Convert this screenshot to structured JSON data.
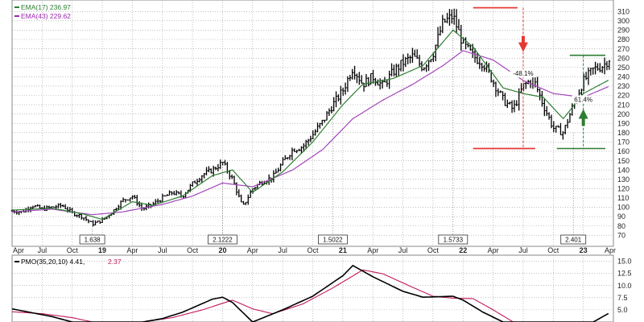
{
  "chart_data": [
    {
      "type": "candlestick",
      "x_start": "2018-04",
      "x_end": "2023-04",
      "x_tick_labels": [
        "Apr",
        "Jul",
        "Oct",
        "19",
        "Apr",
        "Jul",
        "Oct",
        "20",
        "Apr",
        "Jul",
        "Oct",
        "21",
        "Apr",
        "Jul",
        "Oct",
        "22",
        "Apr",
        "Jul",
        "Oct",
        "23",
        "Apr"
      ],
      "y_ticks": [
        70,
        80,
        90,
        100,
        110,
        120,
        130,
        140,
        150,
        160,
        170,
        180,
        190,
        200,
        210,
        220,
        230,
        240,
        250,
        260,
        270,
        280,
        290,
        300,
        310
      ],
      "ylim": [
        65,
        318
      ],
      "grid": true,
      "legend_position": "top-left",
      "legend": [
        {
          "label": "EMA(17) 236.97",
          "color": "#2e7d32"
        },
        {
          "label": "EMA(43) 229.62",
          "color": "#9c27b0"
        }
      ],
      "price_path": [
        {
          "x": "2018-04",
          "y": 96
        },
        {
          "x": "2018-05",
          "y": 95
        },
        {
          "x": "2018-06",
          "y": 102
        },
        {
          "x": "2018-07",
          "y": 98
        },
        {
          "x": "2018-08",
          "y": 100
        },
        {
          "x": "2018-09",
          "y": 102
        },
        {
          "x": "2018-10",
          "y": 94
        },
        {
          "x": "2018-11",
          "y": 90
        },
        {
          "x": "2018-12",
          "y": 82
        },
        {
          "x": "2019-01",
          "y": 86
        },
        {
          "x": "2019-02",
          "y": 95
        },
        {
          "x": "2019-03",
          "y": 107
        },
        {
          "x": "2019-04",
          "y": 112
        },
        {
          "x": "2019-05",
          "y": 98
        },
        {
          "x": "2019-06",
          "y": 103
        },
        {
          "x": "2019-07",
          "y": 110
        },
        {
          "x": "2019-08",
          "y": 116
        },
        {
          "x": "2019-09",
          "y": 112
        },
        {
          "x": "2019-10",
          "y": 125
        },
        {
          "x": "2019-11",
          "y": 135
        },
        {
          "x": "2019-12",
          "y": 140
        },
        {
          "x": "2020-01",
          "y": 148
        },
        {
          "x": "2020-02",
          "y": 130
        },
        {
          "x": "2020-03",
          "y": 100
        },
        {
          "x": "2020-04",
          "y": 120
        },
        {
          "x": "2020-05",
          "y": 128
        },
        {
          "x": "2020-06",
          "y": 132
        },
        {
          "x": "2020-07",
          "y": 148
        },
        {
          "x": "2020-08",
          "y": 162
        },
        {
          "x": "2020-09",
          "y": 165
        },
        {
          "x": "2020-10",
          "y": 178
        },
        {
          "x": "2020-11",
          "y": 192
        },
        {
          "x": "2020-12",
          "y": 210
        },
        {
          "x": "2021-01",
          "y": 225
        },
        {
          "x": "2021-02",
          "y": 250
        },
        {
          "x": "2021-03",
          "y": 232
        },
        {
          "x": "2021-04",
          "y": 240
        },
        {
          "x": "2021-05",
          "y": 230
        },
        {
          "x": "2021-06",
          "y": 245
        },
        {
          "x": "2021-07",
          "y": 255
        },
        {
          "x": "2021-08",
          "y": 262
        },
        {
          "x": "2021-09",
          "y": 250
        },
        {
          "x": "2021-10",
          "y": 265
        },
        {
          "x": "2021-11",
          "y": 298
        },
        {
          "x": "2021-12",
          "y": 305
        },
        {
          "x": "2022-01",
          "y": 275
        },
        {
          "x": "2022-02",
          "y": 262
        },
        {
          "x": "2022-03",
          "y": 255
        },
        {
          "x": "2022-04",
          "y": 235
        },
        {
          "x": "2022-05",
          "y": 215
        },
        {
          "x": "2022-06",
          "y": 205
        },
        {
          "x": "2022-07",
          "y": 230
        },
        {
          "x": "2022-08",
          "y": 238
        },
        {
          "x": "2022-09",
          "y": 210
        },
        {
          "x": "2022-10",
          "y": 185
        },
        {
          "x": "2022-11",
          "y": 180
        },
        {
          "x": "2022-12",
          "y": 210
        },
        {
          "x": "2023-01",
          "y": 235
        },
        {
          "x": "2023-02",
          "y": 248
        },
        {
          "x": "2023-03",
          "y": 252
        },
        {
          "x": "2023-03-20",
          "y": 260
        }
      ],
      "ema17_path": [
        {
          "x": "2018-04",
          "y": 97
        },
        {
          "x": "2018-08",
          "y": 99
        },
        {
          "x": "2018-11",
          "y": 93
        },
        {
          "x": "2019-01",
          "y": 87
        },
        {
          "x": "2019-04",
          "y": 106
        },
        {
          "x": "2019-06",
          "y": 102
        },
        {
          "x": "2019-09",
          "y": 112
        },
        {
          "x": "2019-12",
          "y": 134
        },
        {
          "x": "2020-02",
          "y": 140
        },
        {
          "x": "2020-04",
          "y": 116
        },
        {
          "x": "2020-07",
          "y": 138
        },
        {
          "x": "2020-10",
          "y": 170
        },
        {
          "x": "2021-01",
          "y": 210
        },
        {
          "x": "2021-03",
          "y": 232
        },
        {
          "x": "2021-06",
          "y": 238
        },
        {
          "x": "2021-09",
          "y": 252
        },
        {
          "x": "2021-12",
          "y": 290
        },
        {
          "x": "2022-02",
          "y": 272
        },
        {
          "x": "2022-05",
          "y": 228
        },
        {
          "x": "2022-07",
          "y": 222
        },
        {
          "x": "2022-09",
          "y": 218
        },
        {
          "x": "2022-11",
          "y": 195
        },
        {
          "x": "2023-01",
          "y": 222
        },
        {
          "x": "2023-03-20",
          "y": 237
        }
      ],
      "ema43_path": [
        {
          "x": "2018-04",
          "y": 95
        },
        {
          "x": "2018-08",
          "y": 98
        },
        {
          "x": "2018-12",
          "y": 92
        },
        {
          "x": "2019-03",
          "y": 95
        },
        {
          "x": "2019-07",
          "y": 103
        },
        {
          "x": "2019-10",
          "y": 112
        },
        {
          "x": "2020-01",
          "y": 126
        },
        {
          "x": "2020-04",
          "y": 122
        },
        {
          "x": "2020-08",
          "y": 140
        },
        {
          "x": "2020-11",
          "y": 162
        },
        {
          "x": "2021-02",
          "y": 195
        },
        {
          "x": "2021-05",
          "y": 215
        },
        {
          "x": "2021-08",
          "y": 232
        },
        {
          "x": "2021-11",
          "y": 252
        },
        {
          "x": "2022-01",
          "y": 268
        },
        {
          "x": "2022-04",
          "y": 258
        },
        {
          "x": "2022-07",
          "y": 236
        },
        {
          "x": "2022-10",
          "y": 222
        },
        {
          "x": "2023-01",
          "y": 218
        },
        {
          "x": "2023-03-20",
          "y": 230
        }
      ],
      "annotations": [
        {
          "type": "price_box",
          "x": "2018-12",
          "y": 80,
          "text": "1.638"
        },
        {
          "type": "price_box",
          "x": "2020-01",
          "y": 148,
          "text": "2.1222"
        },
        {
          "type": "price_box",
          "x": "2020-12",
          "y": 210,
          "text": "1.5022"
        },
        {
          "type": "price_box",
          "x": "2021-12",
          "y": 305,
          "text": "1.5733"
        },
        {
          "type": "price_box",
          "x": "2022-12",
          "y": 180,
          "text": "2.401"
        },
        {
          "type": "percent_label",
          "x": "2022-07",
          "y": 241,
          "text": "-48.1%"
        },
        {
          "type": "percent_label",
          "x": "2023-01",
          "y": 213,
          "text": "61.4%"
        }
      ],
      "guides": {
        "red_level_high": 314,
        "red_level_low": 163,
        "red_x_start": "2022-02",
        "red_x_end": "2022-09",
        "red_arrow_x": "2022-07",
        "green_level_high": 263,
        "green_level_low": 163,
        "green_x_start": "2022-11",
        "green_x_end": "2023-04",
        "green_arrow_x": "2023-01"
      }
    },
    {
      "type": "line",
      "title": "PMO(35,20,10) 4.41, 2.37",
      "title_parts": [
        "PMO(35,20,10) 4.41,",
        "2.37"
      ],
      "y_ticks": [
        5.0,
        7.5,
        10.0,
        12.5,
        15.0
      ],
      "y_tick_labels": [
        "5.0",
        "7.5",
        "10.0",
        "12.5",
        "15.0"
      ],
      "ylim": [
        2.5,
        15.4
      ],
      "series": [
        {
          "color": "#000000",
          "points": [
            {
              "x": "2018-04",
              "y": 5.2
            },
            {
              "x": "2018-06",
              "y": 4.4
            },
            {
              "x": "2018-08",
              "y": 3.6
            },
            {
              "x": "2018-10",
              "y": 2.5
            },
            {
              "x": "2019-02",
              "y": 2.5
            },
            {
              "x": "2019-05",
              "y": 2.5
            },
            {
              "x": "2019-07",
              "y": 3.2
            },
            {
              "x": "2019-09",
              "y": 4.5
            },
            {
              "x": "2019-12",
              "y": 7.2
            },
            {
              "x": "2020-01",
              "y": 7.6
            },
            {
              "x": "2020-02",
              "y": 6.5
            },
            {
              "x": "2020-04",
              "y": 2.5
            },
            {
              "x": "2020-07",
              "y": 5.0
            },
            {
              "x": "2020-10",
              "y": 7.8
            },
            {
              "x": "2021-01",
              "y": 12.0
            },
            {
              "x": "2021-02",
              "y": 14.1
            },
            {
              "x": "2021-04",
              "y": 11.8
            },
            {
              "x": "2021-07",
              "y": 8.8
            },
            {
              "x": "2021-09",
              "y": 7.6
            },
            {
              "x": "2021-12",
              "y": 7.8
            },
            {
              "x": "2022-01",
              "y": 7.0
            },
            {
              "x": "2022-03",
              "y": 4.5
            },
            {
              "x": "2022-05",
              "y": 2.5
            },
            {
              "x": "2023-02",
              "y": 2.5
            },
            {
              "x": "2023-03-20",
              "y": 4.41
            }
          ]
        },
        {
          "color": "#c2185b",
          "points": [
            {
              "x": "2018-04",
              "y": 4.6
            },
            {
              "x": "2018-07",
              "y": 4.2
            },
            {
              "x": "2018-10",
              "y": 3.4
            },
            {
              "x": "2018-12",
              "y": 2.5
            },
            {
              "x": "2019-05",
              "y": 2.5
            },
            {
              "x": "2019-08",
              "y": 3.4
            },
            {
              "x": "2019-11",
              "y": 5.0
            },
            {
              "x": "2020-02",
              "y": 7.0
            },
            {
              "x": "2020-04",
              "y": 5.2
            },
            {
              "x": "2020-06",
              "y": 4.2
            },
            {
              "x": "2020-09",
              "y": 6.2
            },
            {
              "x": "2020-12",
              "y": 9.5
            },
            {
              "x": "2021-03",
              "y": 13.2
            },
            {
              "x": "2021-05",
              "y": 12.4
            },
            {
              "x": "2021-08",
              "y": 9.6
            },
            {
              "x": "2021-10",
              "y": 7.8
            },
            {
              "x": "2021-12",
              "y": 7.4
            },
            {
              "x": "2022-02",
              "y": 7.3
            },
            {
              "x": "2022-04",
              "y": 5.0
            },
            {
              "x": "2022-06",
              "y": 2.5
            },
            {
              "x": "2023-03-20",
              "y": 2.37
            }
          ]
        }
      ]
    }
  ]
}
